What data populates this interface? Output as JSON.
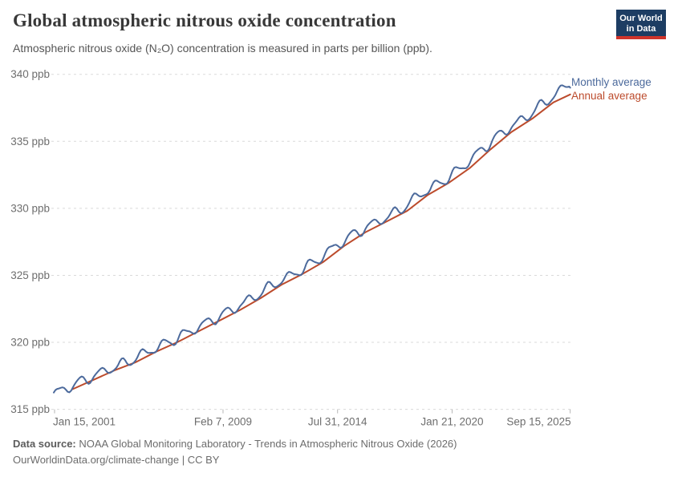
{
  "header": {
    "title": "Global atmospheric nitrous oxide concentration",
    "subtitle": "Atmospheric nitrous oxide (N₂O) concentration is measured in parts per billion (ppb).",
    "logo": {
      "line1": "Our World",
      "line2": "in Data",
      "bg_color": "#1d3d63",
      "bar_color": "#cf342b"
    }
  },
  "footer": {
    "source_label": "Data source:",
    "source_text": "NOAA Global Monitoring Laboratory - Trends in Atmospheric Nitrous Oxide (2026)",
    "credit_line": "OurWorldinData.org/climate-change | CC BY"
  },
  "chart_data": {
    "type": "line",
    "title": "Global atmospheric nitrous oxide concentration",
    "ylabel": "parts per billion (ppb)",
    "grid": "horizontal-dashed",
    "legend_position": "right-of-line-ends",
    "y_axis": {
      "unit": "ppb",
      "range": [
        315,
        340
      ],
      "ticks": [
        {
          "value": 315,
          "label": "315 ppb"
        },
        {
          "value": 320,
          "label": "320 ppb"
        },
        {
          "value": 325,
          "label": "325 ppb"
        },
        {
          "value": 330,
          "label": "330 ppb"
        },
        {
          "value": 335,
          "label": "335 ppb"
        },
        {
          "value": 340,
          "label": "340 ppb"
        }
      ]
    },
    "x_axis": {
      "range": [
        2000.95,
        2025.75
      ],
      "ticks": [
        {
          "label": "Jan 15, 2001",
          "year": 2001.04
        },
        {
          "label": "Feb 7, 2009",
          "year": 2009.1
        },
        {
          "label": "Jul 31, 2014",
          "year": 2014.58
        },
        {
          "label": "Jan 21, 2020",
          "year": 2020.06
        },
        {
          "label": "Sep 15, 2025",
          "year": 2025.71
        }
      ]
    },
    "series": [
      {
        "name": "Monthly average",
        "color": "#4C6A9C",
        "cadence": "monthly",
        "start": 2001.0,
        "end": 2025.71,
        "end_value": 339.0,
        "seasonal_amplitude_ppb": 0.35,
        "seasonal_peak": "spring",
        "seasonal_trough": "autumn"
      },
      {
        "name": "Annual average",
        "color": "#BC4B2C",
        "cadence": "annual",
        "plotted_at": "year_end",
        "start": 2001.9,
        "end": 2025.71,
        "end_value": 338.5
      }
    ],
    "annual_means": {
      "years": [
        2001,
        2002,
        2003,
        2004,
        2005,
        2006,
        2007,
        2008,
        2009,
        2010,
        2011,
        2012,
        2013,
        2014,
        2015,
        2016,
        2017,
        2018,
        2019,
        2020,
        2021,
        2022,
        2023,
        2024
      ],
      "values": [
        316.5,
        317.2,
        317.9,
        318.5,
        319.3,
        320.0,
        320.8,
        321.6,
        322.4,
        323.3,
        324.3,
        325.1,
        326.0,
        327.2,
        328.2,
        329.0,
        329.8,
        331.0,
        331.9,
        333.0,
        334.4,
        335.7,
        336.7,
        337.9
      ]
    }
  }
}
